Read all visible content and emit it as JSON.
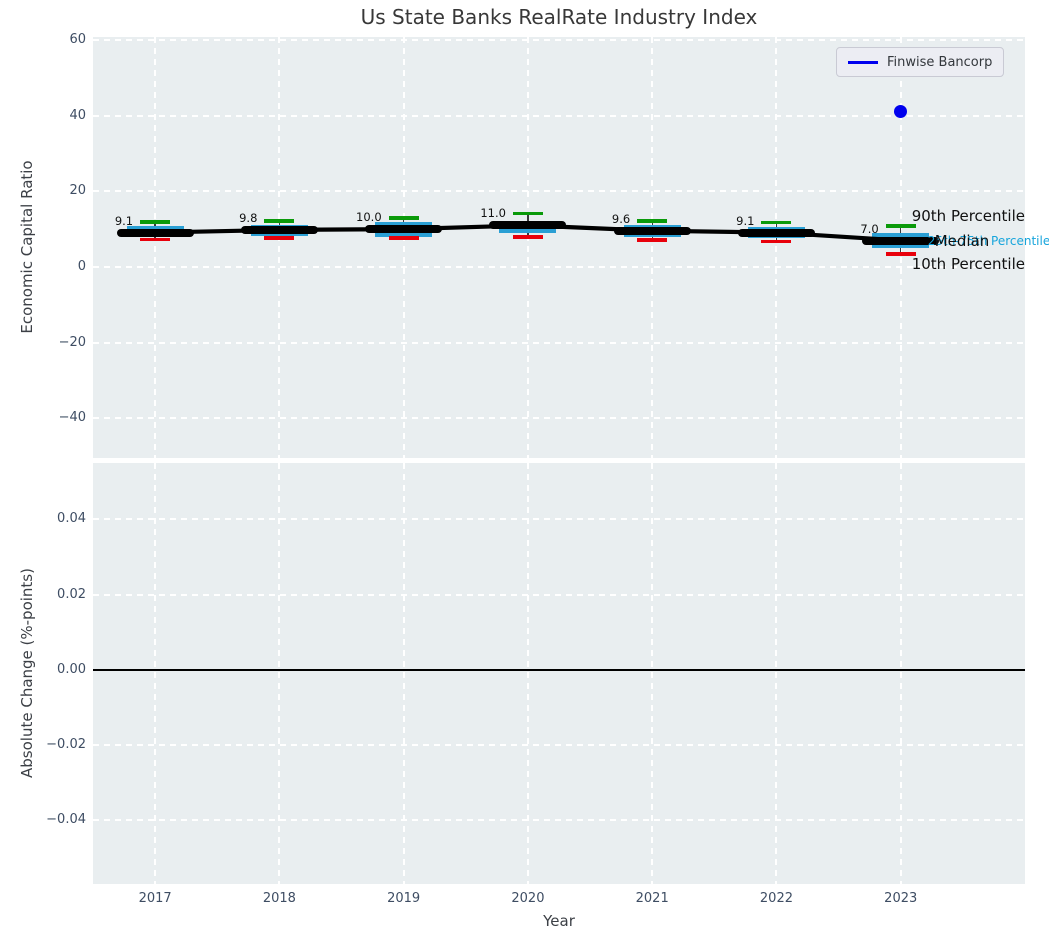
{
  "colors": {
    "axes_background": "#e9eef0",
    "grid": "#ffffff",
    "box_fill": "#2a9fd4",
    "p90_cap": "#0a9a0a",
    "p10_cap": "#e8000b",
    "median": "#000000",
    "finwise": "#0000ee",
    "annotation_cyan": "#17a5dc",
    "tick_text": "#3e4d63"
  },
  "chart_data": [
    {
      "type": "boxplot+line",
      "title": "Us State Banks RealRate Industry Index",
      "ylabel": "Economic Capital Ratio",
      "x": [
        2017,
        2018,
        2019,
        2020,
        2021,
        2022,
        2023
      ],
      "xlim": [
        2016.5,
        2024.0
      ],
      "ylim": [
        -50.5,
        60.8
      ],
      "ytick_values": [
        60,
        40,
        20,
        0,
        -20,
        -40
      ],
      "ytick_labels": [
        "60",
        "40",
        "20",
        "0",
        "−20",
        "−40"
      ],
      "grid": true,
      "series": [
        {
          "name": "Median",
          "values": [
            9.1,
            9.8,
            10.0,
            11.0,
            9.6,
            9.1,
            7.0
          ]
        },
        {
          "name": "90th Percentile",
          "values": [
            11.9,
            12.1,
            12.9,
            14.2,
            12.1,
            11.8,
            10.8
          ]
        },
        {
          "name": "75th Percentile",
          "values": [
            10.9,
            11.1,
            11.8,
            11.6,
            11.1,
            10.5,
            8.9
          ]
        },
        {
          "name": "25th Percentile",
          "values": [
            7.8,
            8.2,
            7.9,
            8.9,
            7.9,
            7.6,
            5.0
          ]
        },
        {
          "name": "10th Percentile",
          "values": [
            7.2,
            7.6,
            7.6,
            7.9,
            7.1,
            6.8,
            3.4
          ]
        }
      ],
      "scatter": {
        "name": "Finwise Bancorp",
        "x": [
          2023
        ],
        "y": [
          41.0
        ]
      },
      "value_labels": [
        "9.1",
        "9.8",
        "10.0",
        "11.0",
        "9.6",
        "9.1",
        "7.0"
      ],
      "legend": {
        "position": "upper right",
        "entries": [
          "Finwise Bancorp"
        ]
      },
      "annotations": {
        "p90": "90th Percentile",
        "median": "Median",
        "p25_75": "25th-75th Percentile",
        "p10": "10th Percentile"
      }
    },
    {
      "type": "line",
      "ylabel": "Absolute Change (%-points)",
      "xlabel": "Year",
      "xtick_labels": [
        "2017",
        "2018",
        "2019",
        "2020",
        "2021",
        "2022",
        "2023"
      ],
      "ylim": [
        -0.057,
        0.055
      ],
      "ytick_values": [
        0.04,
        0.02,
        0.0,
        -0.02,
        -0.04
      ],
      "ytick_labels": [
        "0.04",
        "0.02",
        "0.00",
        "−0.02",
        "−0.04"
      ],
      "grid": true,
      "zero_line": true,
      "series": []
    }
  ]
}
